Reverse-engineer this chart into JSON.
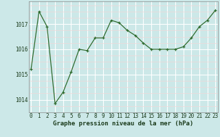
{
  "x": [
    0,
    1,
    2,
    3,
    4,
    5,
    6,
    7,
    8,
    9,
    10,
    11,
    12,
    13,
    14,
    15,
    16,
    17,
    18,
    19,
    20,
    21,
    22,
    23
  ],
  "y": [
    1015.2,
    1017.5,
    1016.9,
    1013.85,
    1014.3,
    1015.1,
    1016.0,
    1015.95,
    1016.45,
    1016.45,
    1017.15,
    1017.05,
    1016.75,
    1016.55,
    1016.25,
    1016.0,
    1016.0,
    1016.0,
    1016.0,
    1016.1,
    1016.45,
    1016.9,
    1017.15,
    1017.55
  ],
  "line_color": "#2d6a2d",
  "marker": "+",
  "bg_color": "#cce8e8",
  "grid_color": "#ffffff",
  "grid_minor_color": "#e8f5f5",
  "xlabel": "Graphe pression niveau de la mer (hPa)",
  "xlabel_color": "#1a3a1a",
  "ylim": [
    1013.5,
    1017.9
  ],
  "yticks": [
    1014,
    1015,
    1016,
    1017
  ],
  "xticks": [
    0,
    1,
    2,
    3,
    4,
    5,
    6,
    7,
    8,
    9,
    10,
    11,
    12,
    13,
    14,
    15,
    16,
    17,
    18,
    19,
    20,
    21,
    22,
    23
  ],
  "tick_fontsize": 5.5,
  "xlabel_fontsize": 6.5
}
